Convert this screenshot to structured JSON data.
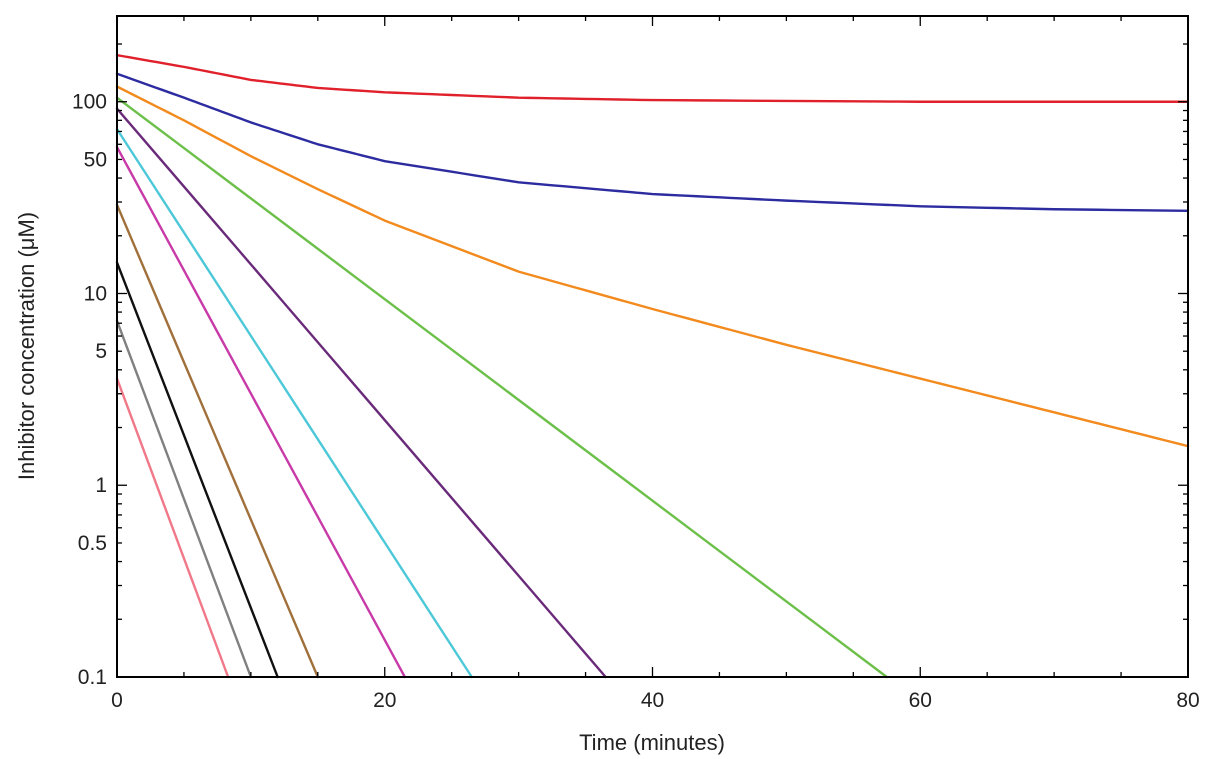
{
  "chart_data": {
    "type": "line",
    "xlabel": "Time (minutes)",
    "ylabel": "Inhibitor concentration (μM)",
    "xlim": [
      0,
      80
    ],
    "ylim": [
      0.1,
      280
    ],
    "yscale": "log",
    "grid": false,
    "x_ticks": [
      0,
      20,
      40,
      60,
      80
    ],
    "x_tick_labels": [
      "0",
      "20",
      "40",
      "60",
      "80"
    ],
    "y_ticks": [
      0.1,
      0.5,
      1,
      5,
      10,
      50,
      100
    ],
    "y_tick_labels": [
      "0.1",
      "0.5",
      "1",
      "5",
      "10",
      "50",
      "100"
    ],
    "series": [
      {
        "color": "#e0202a",
        "x": [
          0,
          5,
          10,
          15,
          20,
          30,
          40,
          60,
          80
        ],
        "y": [
          175,
          152,
          130,
          118,
          112,
          105,
          102,
          100,
          100
        ]
      },
      {
        "color": "#2c2ca0",
        "x": [
          0,
          5,
          10,
          15,
          20,
          30,
          40,
          50,
          60,
          70,
          80
        ],
        "y": [
          140,
          105,
          78,
          60,
          49,
          38,
          33,
          30.5,
          28.5,
          27.5,
          27
        ]
      },
      {
        "color": "#f28a1e",
        "x": [
          0,
          5,
          10,
          15,
          20,
          30,
          40,
          50,
          60,
          70,
          80
        ],
        "y": [
          120,
          80,
          52,
          35,
          24,
          13,
          8.3,
          5.4,
          3.6,
          2.4,
          1.6
        ]
      },
      {
        "color": "#6cc04a",
        "x": [
          0,
          57.5
        ],
        "y": [
          105,
          0.1
        ]
      },
      {
        "color": "#6a2a7a",
        "x": [
          0,
          36.5
        ],
        "y": [
          92,
          0.1
        ]
      },
      {
        "color": "#4cc8d8",
        "x": [
          0,
          26.5
        ],
        "y": [
          72,
          0.1
        ]
      },
      {
        "color": "#c83aa8",
        "x": [
          0,
          21.5
        ],
        "y": [
          58,
          0.1
        ]
      },
      {
        "color": "#a0703a",
        "x": [
          0,
          15
        ],
        "y": [
          29,
          0.1
        ]
      },
      {
        "color": "#111111",
        "x": [
          0,
          12
        ],
        "y": [
          14.5,
          0.1
        ]
      },
      {
        "color": "#808080",
        "x": [
          0,
          10
        ],
        "y": [
          7.2,
          0.1
        ]
      },
      {
        "color": "#f07888",
        "x": [
          0,
          8.3
        ],
        "y": [
          3.6,
          0.1
        ]
      }
    ]
  }
}
